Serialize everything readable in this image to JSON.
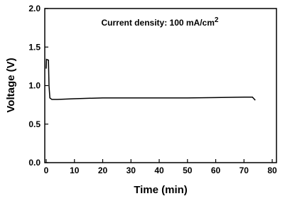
{
  "chart_data": {
    "type": "line",
    "annotation": {
      "text": "Current density: 100 mA/cm",
      "superscript": "2"
    },
    "x_label": "Time (min)",
    "y_label": "Voltage (V)",
    "x": [
      0,
      0.1,
      0.8,
      1.0,
      1.3,
      2,
      4,
      10,
      20,
      30,
      40,
      50,
      60,
      70,
      73,
      74
    ],
    "series": [
      {
        "color": "#000000",
        "values": [
          1.22,
          1.34,
          1.33,
          1.0,
          0.84,
          0.82,
          0.82,
          0.83,
          0.84,
          0.84,
          0.84,
          0.84,
          0.845,
          0.85,
          0.85,
          0.81
        ]
      }
    ],
    "xlim": [
      -0.5,
      81.5
    ],
    "xticks": [
      0,
      10,
      20,
      30,
      40,
      50,
      60,
      70,
      80
    ],
    "ylim": [
      0,
      2
    ],
    "yticks": [
      {
        "value": 0,
        "label": "0.0"
      },
      0.5,
      {
        "value": 1,
        "label": "1.0"
      },
      1.5,
      {
        "value": 2,
        "label": "2.0"
      }
    ]
  }
}
